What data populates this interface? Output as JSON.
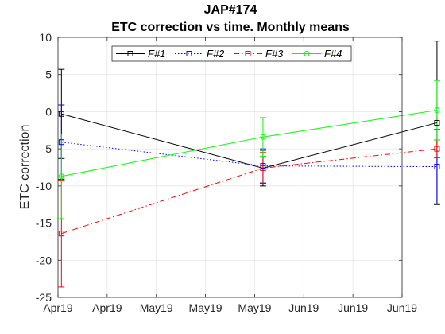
{
  "chart_data": {
    "type": "line",
    "title": [
      "JAP#174",
      "ETC correction vs time. Monthly means"
    ],
    "xlabel": "",
    "ylabel": "ETC correction",
    "x_tick_labels": [
      "Apr19",
      "Apr19",
      "May19",
      "May19",
      "May19",
      "Jun19",
      "Jun19",
      "Jun19"
    ],
    "xlim": [
      0,
      7
    ],
    "ylim": [
      -25,
      10
    ],
    "yticks": [
      -25,
      -20,
      -15,
      -10,
      -5,
      0,
      5,
      10
    ],
    "grid": true,
    "legend": {
      "placement": "top",
      "orientation": "horizontal"
    },
    "x": [
      0.07,
      4.17,
      7.71
    ],
    "series": [
      {
        "name": "F#1",
        "color": "#000000",
        "dash": "solid",
        "marker": "square",
        "values": [
          -0.3,
          -7.6,
          -1.5
        ],
        "err": [
          6.0,
          2.4,
          11.0
        ]
      },
      {
        "name": "F#2",
        "color": "#0000ff",
        "dash": "dotted",
        "marker": "square",
        "values": [
          -4.1,
          -7.3,
          -7.4
        ],
        "err": [
          5.0,
          2.3,
          5.0
        ]
      },
      {
        "name": "F#3",
        "color": "#ff0000",
        "dash": "dashdot",
        "marker": "square",
        "values": [
          -16.4,
          -7.6,
          -5.0
        ],
        "err": [
          7.2,
          2.1,
          1.2
        ]
      },
      {
        "name": "F#4",
        "color": "#00ff00",
        "dash": "solid",
        "marker": "circle",
        "values": [
          -8.7,
          -3.4,
          0.2
        ],
        "err": [
          5.7,
          2.6,
          4.0
        ]
      }
    ]
  }
}
